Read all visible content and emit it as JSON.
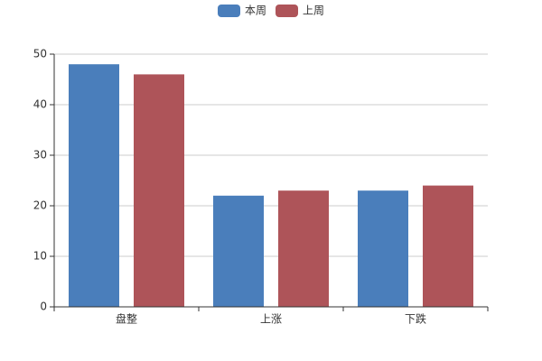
{
  "chart_data": {
    "type": "bar",
    "categories": [
      "盘整",
      "上涨",
      "下跌"
    ],
    "series": [
      {
        "name": "本周",
        "color": "#4a7ebb",
        "values": [
          48,
          22,
          23
        ]
      },
      {
        "name": "上周",
        "color": "#ae5459",
        "values": [
          46,
          23,
          24
        ]
      }
    ],
    "ylim": [
      0,
      50
    ],
    "yticks": [
      0,
      10,
      20,
      30,
      40,
      50
    ],
    "grid": true,
    "legend": "top"
  }
}
